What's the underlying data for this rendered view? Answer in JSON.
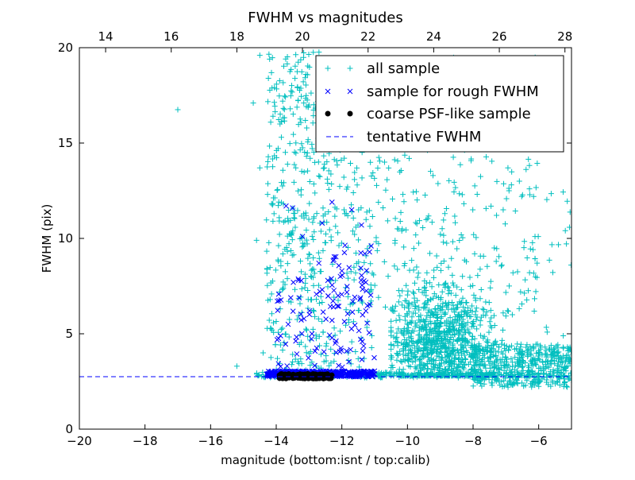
{
  "chart_data": {
    "type": "scatter",
    "title": "FWHM vs magnitudes",
    "xlabel": "magnitude (bottom:isnt / top:calib)",
    "ylabel": "FWHM (pix)",
    "xlim": [
      -20,
      -5
    ],
    "ylim": [
      0,
      20
    ],
    "xticks": [
      -20,
      -18,
      -16,
      -14,
      -12,
      -10,
      -8,
      -6
    ],
    "xtick_labels": [
      "−20",
      "−18",
      "−16",
      "−14",
      "−12",
      "−10",
      "−8",
      "−6"
    ],
    "yticks": [
      0,
      5,
      10,
      15,
      20
    ],
    "ytick_labels": [
      "0",
      "5",
      "10",
      "15",
      "20"
    ],
    "top_axis": {
      "xlim": [
        13.2,
        28.2
      ],
      "ticks": [
        14,
        16,
        18,
        20,
        22,
        24,
        26,
        28
      ],
      "tick_labels": [
        "14",
        "16",
        "18",
        "20",
        "22",
        "24",
        "26",
        "28"
      ]
    },
    "grid": false,
    "legend_position": "top-right",
    "tentative_fwhm": 2.75,
    "series": [
      {
        "name": "all sample",
        "marker": "+",
        "color": "#00bfbf",
        "clusters": [
          {
            "x": [
              -14.3,
              -12.5
            ],
            "y": [
              3.0,
              19.8
            ],
            "n": 380,
            "kind": "uniform"
          },
          {
            "x": [
              -12.5,
              -11.0
            ],
            "y": [
              3.0,
              16.0
            ],
            "n": 150,
            "kind": "uniform"
          },
          {
            "x": [
              -10.5,
              -7.0
            ],
            "y": [
              2.8,
              8.5
            ],
            "n": 900,
            "kind": "dense",
            "cx": -9.0,
            "cy": 4.5
          },
          {
            "x": [
              -11.0,
              -6.0
            ],
            "y": [
              6.0,
              19.5
            ],
            "n": 350,
            "kind": "uniform"
          },
          {
            "x": [
              -8.0,
              -5.0
            ],
            "y": [
              2.2,
              4.5
            ],
            "n": 450,
            "kind": "uniform"
          },
          {
            "x": [
              -14.6,
              -5.0
            ],
            "y": [
              2.7,
              3.0
            ],
            "n": 250,
            "kind": "uniform"
          },
          {
            "x": [
              -6.5,
              -5.0
            ],
            "y": [
              4.0,
              12.5
            ],
            "n": 25,
            "kind": "uniform"
          }
        ],
        "points": [
          {
            "x": -17.0,
            "y": 16.75
          },
          {
            "x": -15.2,
            "y": 3.3
          },
          {
            "x": -14.7,
            "y": 17.1
          },
          {
            "x": -14.5,
            "y": 19.6
          },
          {
            "x": -14.2,
            "y": 19.4
          },
          {
            "x": -14.5,
            "y": 13.7
          },
          {
            "x": -14.4,
            "y": 4.0
          },
          {
            "x": -14.6,
            "y": 9.9
          }
        ]
      },
      {
        "name": "sample for rough FWHM",
        "marker": "x",
        "color": "#0000ff",
        "clusters": [
          {
            "x": [
              -14.3,
              -11.0
            ],
            "y": [
              2.75,
              3.05
            ],
            "n": 400,
            "kind": "uniform"
          },
          {
            "x": [
              -14.0,
              -11.0
            ],
            "y": [
              3.2,
              8.0
            ],
            "n": 75,
            "kind": "uniform"
          },
          {
            "x": [
              -12.5,
              -11.0
            ],
            "y": [
              4.0,
              10.0
            ],
            "n": 40,
            "kind": "uniform"
          }
        ],
        "points": [
          {
            "x": -13.7,
            "y": 11.7
          },
          {
            "x": -13.5,
            "y": 11.6
          },
          {
            "x": -13.2,
            "y": 10.1
          },
          {
            "x": -12.3,
            "y": 11.9
          },
          {
            "x": -11.7,
            "y": 11.5
          },
          {
            "x": -12.6,
            "y": 10.8
          },
          {
            "x": -11.4,
            "y": 10.7
          },
          {
            "x": -11.3,
            "y": 9.2
          },
          {
            "x": -12.7,
            "y": 8.7
          },
          {
            "x": -12.0,
            "y": 8.3
          }
        ]
      },
      {
        "name": "coarse PSF-like sample",
        "marker": "o",
        "color": "#000000",
        "clusters": [
          {
            "x": [
              -13.9,
              -12.3
            ],
            "y": [
              2.65,
              2.9
            ],
            "n": 130,
            "kind": "uniform"
          }
        ],
        "points": []
      },
      {
        "name": "tentative FWHM",
        "marker": "dashed-line",
        "color": "#0000ff",
        "points": []
      }
    ]
  }
}
